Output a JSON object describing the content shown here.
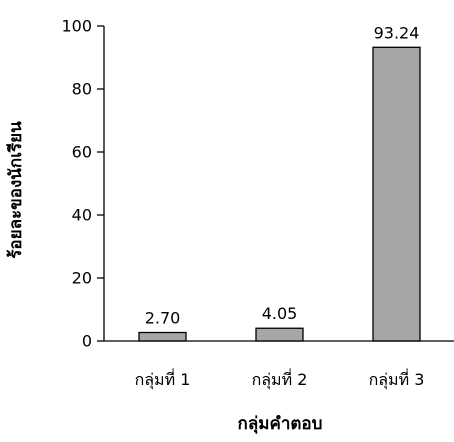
{
  "chart_data": {
    "type": "bar",
    "categories": [
      "กลุ่มที่ 1",
      "กลุ่มที่ 2",
      "กลุ่มที่ 3"
    ],
    "values": [
      2.7,
      4.05,
      93.24
    ],
    "data_labels": [
      "2.70",
      "4.05",
      "93.24"
    ],
    "xlabel": "กลุ่มคำตอบ",
    "ylabel": "ร้อยละของนักเรียน",
    "ylim": [
      0,
      100
    ],
    "yticks": [
      0,
      20,
      40,
      60,
      80,
      100
    ],
    "grid": false,
    "legend": "none",
    "colors": {
      "bar_fill": "#a6a6a6",
      "bar_stroke": "#000000",
      "axis": "#000000"
    }
  }
}
